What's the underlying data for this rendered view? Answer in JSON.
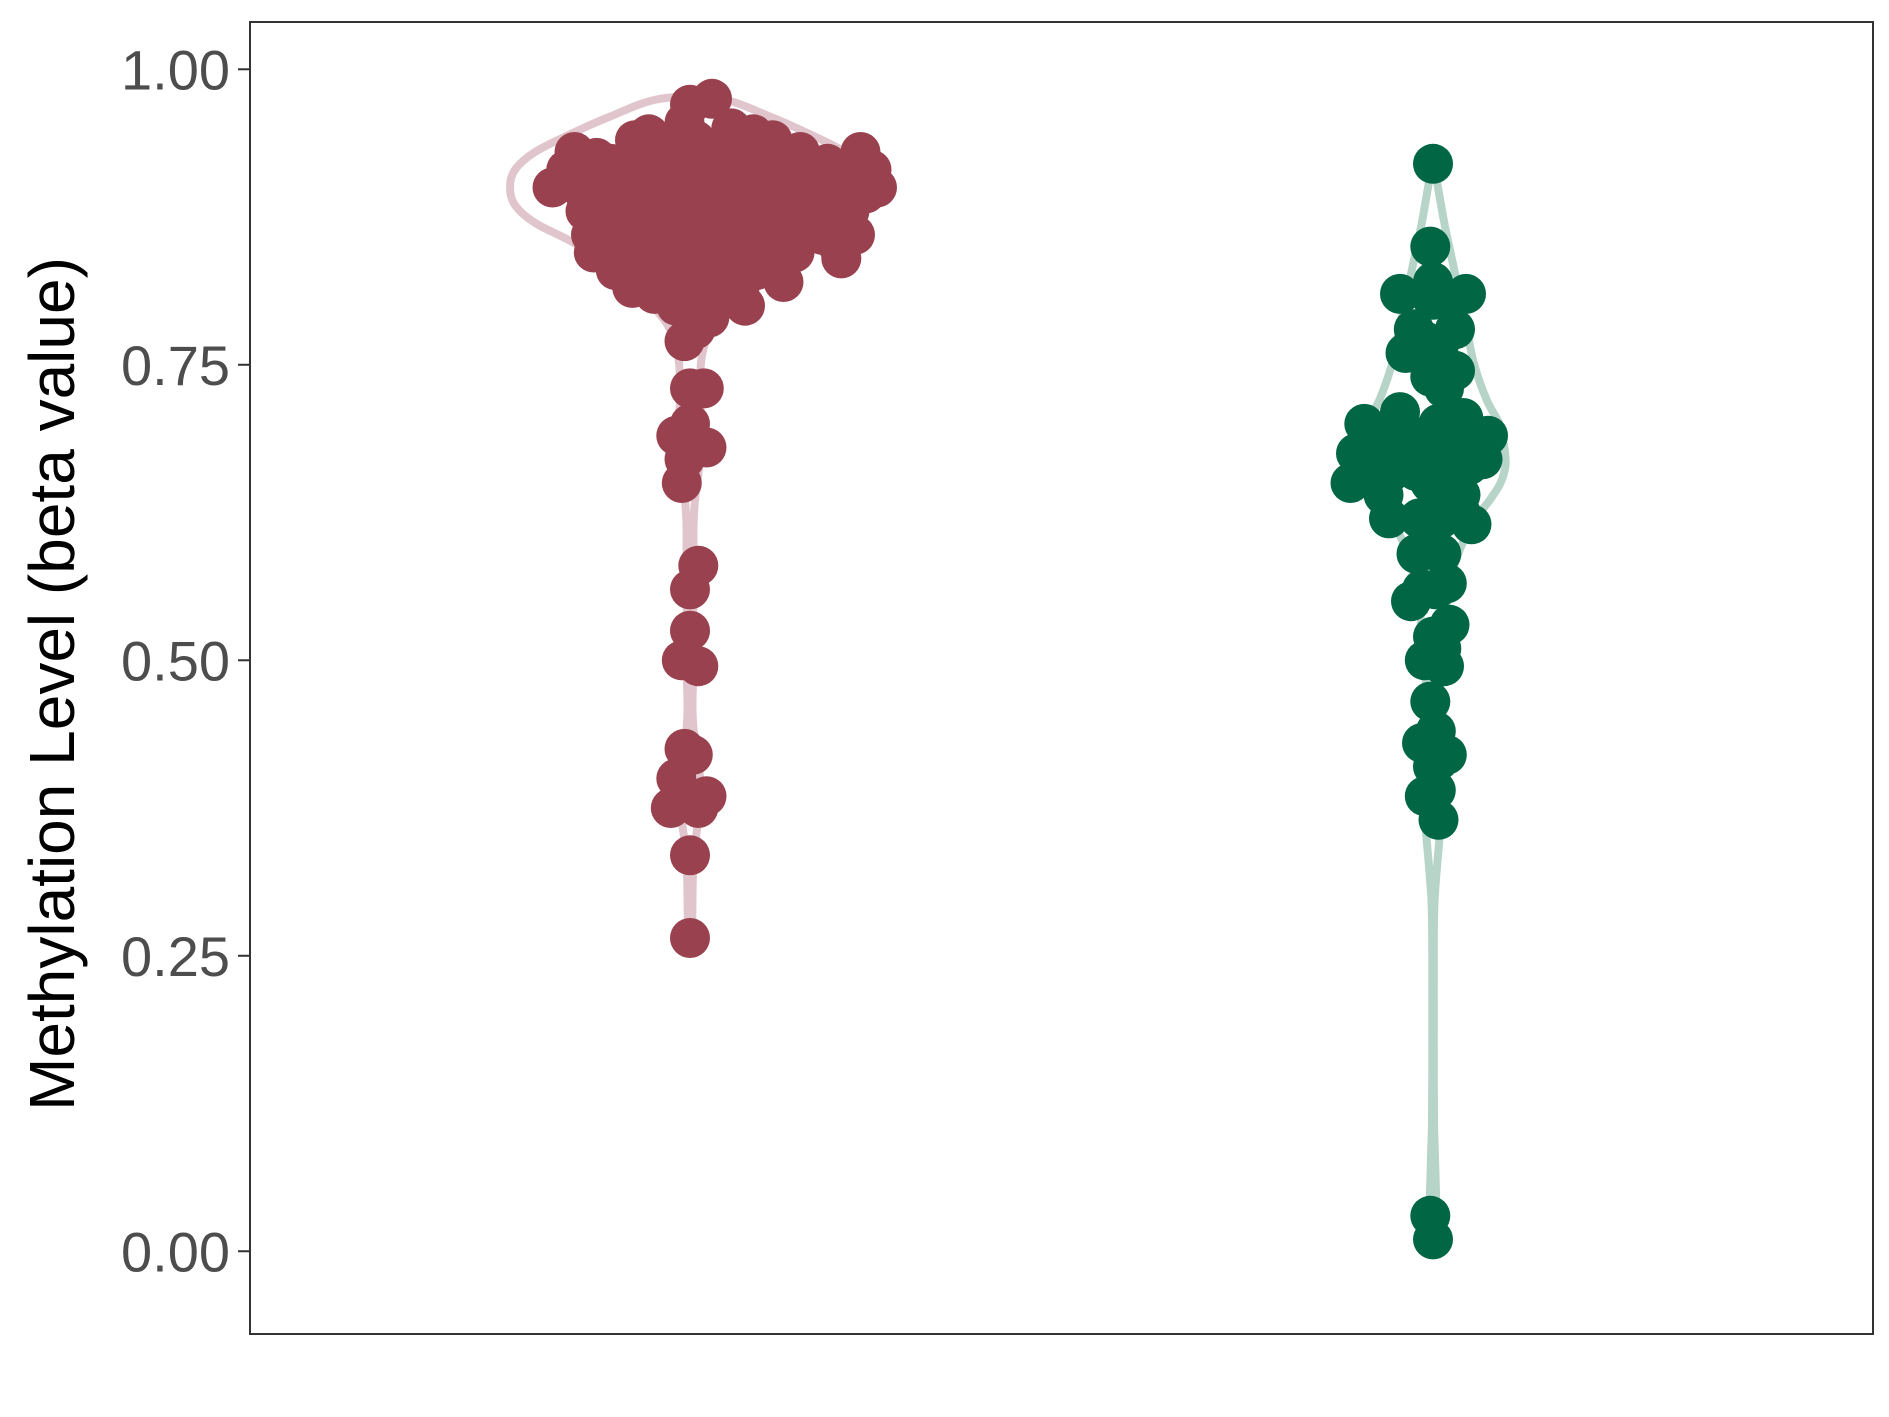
{
  "chart_data": {
    "type": "violin",
    "ylabel": "Methylation Level (beta value)",
    "ylim": [
      -0.07,
      1.04
    ],
    "yticks": [
      {
        "value": 0.0,
        "label": "0.00"
      },
      {
        "value": 0.25,
        "label": "0.25"
      },
      {
        "value": 0.5,
        "label": "0.50"
      },
      {
        "value": 0.75,
        "label": "0.75"
      },
      {
        "value": 1.0,
        "label": "1.00"
      }
    ],
    "grid": false,
    "series": [
      {
        "color": "#99414f",
        "violin_color": "#e0c6cc",
        "points": [
          [
            -0.5,
            0.9
          ],
          [
            -0.45,
            0.915
          ],
          [
            -0.42,
            0.93
          ],
          [
            -0.4,
            0.9
          ],
          [
            -0.38,
            0.88
          ],
          [
            -0.36,
            0.86
          ],
          [
            -0.34,
            0.925
          ],
          [
            -0.33,
            0.9
          ],
          [
            -0.31,
            0.87
          ],
          [
            -0.3,
            0.845
          ],
          [
            -0.29,
            0.92
          ],
          [
            -0.28,
            0.88
          ],
          [
            -0.26,
            0.905
          ],
          [
            -0.25,
            0.86
          ],
          [
            -0.24,
            0.89
          ],
          [
            -0.22,
            0.85
          ],
          [
            -0.2,
            0.94
          ],
          [
            -0.19,
            0.91
          ],
          [
            -0.18,
            0.87
          ],
          [
            -0.17,
            0.83
          ],
          [
            -0.16,
            0.93
          ],
          [
            -0.15,
            0.89
          ],
          [
            -0.14,
            0.855
          ],
          [
            -0.13,
            0.81
          ],
          [
            -0.12,
            0.935
          ],
          [
            -0.11,
            0.9
          ],
          [
            -0.1,
            0.87
          ],
          [
            -0.09,
            0.84
          ],
          [
            -0.08,
            0.815
          ],
          [
            -0.07,
            0.925
          ],
          [
            -0.06,
            0.89
          ],
          [
            -0.05,
            0.86
          ],
          [
            -0.04,
            0.83
          ],
          [
            -0.03,
            0.8
          ],
          [
            -0.02,
            0.955
          ],
          [
            -0.01,
            0.92
          ],
          [
            0.0,
            0.88
          ],
          [
            0.01,
            0.85
          ],
          [
            0.02,
            0.94
          ],
          [
            0.03,
            0.91
          ],
          [
            0.04,
            0.87
          ],
          [
            0.05,
            0.83
          ],
          [
            0.06,
            0.9
          ],
          [
            0.07,
            0.86
          ],
          [
            0.08,
            0.82
          ],
          [
            0.09,
            0.92
          ],
          [
            0.1,
            0.89
          ],
          [
            0.11,
            0.85
          ],
          [
            0.12,
            0.815
          ],
          [
            0.13,
            0.935
          ],
          [
            0.14,
            0.9
          ],
          [
            0.15,
            0.87
          ],
          [
            0.16,
            0.835
          ],
          [
            0.17,
            0.91
          ],
          [
            0.18,
            0.88
          ],
          [
            0.19,
            0.845
          ],
          [
            0.2,
            0.8
          ],
          [
            0.21,
            0.93
          ],
          [
            0.22,
            0.895
          ],
          [
            0.23,
            0.86
          ],
          [
            0.24,
            0.83
          ],
          [
            0.25,
            0.92
          ],
          [
            0.26,
            0.885
          ],
          [
            0.27,
            0.85
          ],
          [
            0.28,
            0.905
          ],
          [
            0.29,
            0.87
          ],
          [
            0.3,
            0.84
          ],
          [
            0.31,
            0.92
          ],
          [
            0.32,
            0.89
          ],
          [
            0.33,
            0.86
          ],
          [
            0.34,
            0.82
          ],
          [
            0.36,
            0.91
          ],
          [
            0.37,
            0.875
          ],
          [
            0.38,
            0.845
          ],
          [
            0.4,
            0.93
          ],
          [
            0.41,
            0.895
          ],
          [
            0.42,
            0.86
          ],
          [
            0.44,
            0.9
          ],
          [
            0.46,
            0.88
          ],
          [
            0.48,
            0.86
          ],
          [
            0.5,
            0.92
          ],
          [
            0.52,
            0.89
          ],
          [
            0.54,
            0.85
          ],
          [
            0.56,
            0.91
          ],
          [
            0.58,
            0.88
          ],
          [
            0.6,
            0.86
          ],
          [
            0.62,
            0.93
          ],
          [
            0.64,
            0.895
          ],
          [
            0.66,
            0.915
          ],
          [
            0.68,
            0.9
          ],
          [
            -0.35,
            0.845
          ],
          [
            -0.27,
            0.83
          ],
          [
            -0.21,
            0.815
          ],
          [
            -0.05,
            0.8
          ],
          [
            0.02,
            0.81
          ],
          [
            0.07,
            0.79
          ],
          [
            0.12,
            0.805
          ],
          [
            0.18,
            0.81
          ],
          [
            0.35,
            0.85
          ],
          [
            0.55,
            0.84
          ],
          [
            0.0,
            0.97
          ],
          [
            0.08,
            0.975
          ],
          [
            0.15,
            0.95
          ],
          [
            0.23,
            0.945
          ],
          [
            0.3,
            0.94
          ],
          [
            -0.15,
            0.945
          ],
          [
            -0.32,
            0.915
          ],
          [
            0.45,
            0.915
          ],
          [
            0.58,
            0.905
          ],
          [
            0.1,
            0.86
          ],
          [
            -0.02,
            0.77
          ],
          [
            0.02,
            0.78
          ],
          [
            0.0,
            0.73
          ],
          [
            0.05,
            0.73
          ],
          [
            -0.05,
            0.69
          ],
          [
            0.0,
            0.7
          ],
          [
            -0.02,
            0.67
          ],
          [
            0.06,
            0.68
          ],
          [
            -0.03,
            0.65
          ],
          [
            0.03,
            0.58
          ],
          [
            0.0,
            0.56
          ],
          [
            0.0,
            0.525
          ],
          [
            -0.03,
            0.5
          ],
          [
            0.03,
            0.495
          ],
          [
            -0.02,
            0.425
          ],
          [
            0.01,
            0.42
          ],
          [
            -0.05,
            0.4
          ],
          [
            -0.07,
            0.375
          ],
          [
            -0.02,
            0.38
          ],
          [
            0.03,
            0.375
          ],
          [
            0.06,
            0.385
          ],
          [
            0.01,
            0.38
          ],
          [
            0.0,
            0.335
          ],
          [
            0.0,
            0.265
          ]
        ],
        "violin": [
          [
            0.975,
            0.12
          ],
          [
            0.96,
            0.32
          ],
          [
            0.945,
            0.48
          ],
          [
            0.93,
            0.62
          ],
          [
            0.915,
            0.7
          ],
          [
            0.9,
            0.72
          ],
          [
            0.885,
            0.7
          ],
          [
            0.87,
            0.62
          ],
          [
            0.855,
            0.48
          ],
          [
            0.84,
            0.36
          ],
          [
            0.825,
            0.28
          ],
          [
            0.81,
            0.2
          ],
          [
            0.795,
            0.13
          ],
          [
            0.78,
            0.08
          ],
          [
            0.76,
            0.05
          ],
          [
            0.74,
            0.04
          ],
          [
            0.72,
            0.04
          ],
          [
            0.7,
            0.045
          ],
          [
            0.68,
            0.045
          ],
          [
            0.66,
            0.035
          ],
          [
            0.64,
            0.022
          ],
          [
            0.62,
            0.015
          ],
          [
            0.6,
            0.014
          ],
          [
            0.58,
            0.014
          ],
          [
            0.56,
            0.014
          ],
          [
            0.54,
            0.013
          ],
          [
            0.52,
            0.013
          ],
          [
            0.5,
            0.014
          ],
          [
            0.48,
            0.012
          ],
          [
            0.46,
            0.01
          ],
          [
            0.44,
            0.015
          ],
          [
            0.42,
            0.03
          ],
          [
            0.4,
            0.04
          ],
          [
            0.38,
            0.04
          ],
          [
            0.36,
            0.03
          ],
          [
            0.34,
            0.018
          ],
          [
            0.32,
            0.012
          ],
          [
            0.3,
            0.01
          ],
          [
            0.28,
            0.009
          ],
          [
            0.262,
            0.008
          ]
        ]
      },
      {
        "color": "#006643",
        "violin_color": "#b7d4c9",
        "points": [
          [
            -0.3,
            0.65
          ],
          [
            -0.28,
            0.675
          ],
          [
            -0.25,
            0.7
          ],
          [
            -0.24,
            0.66
          ],
          [
            -0.2,
            0.69
          ],
          [
            -0.18,
            0.64
          ],
          [
            -0.16,
            0.62
          ],
          [
            -0.15,
            0.66
          ],
          [
            -0.12,
            0.81
          ],
          [
            -0.12,
            0.71
          ],
          [
            -0.1,
            0.76
          ],
          [
            -0.09,
            0.69
          ],
          [
            -0.11,
            0.68
          ],
          [
            -0.08,
            0.55
          ],
          [
            -0.07,
            0.78
          ],
          [
            -0.06,
            0.66
          ],
          [
            -0.05,
            0.62
          ],
          [
            -0.06,
            0.59
          ],
          [
            -0.04,
            0.56
          ],
          [
            -0.03,
            0.77
          ],
          [
            -0.03,
            0.5
          ],
          [
            -0.02,
            0.69
          ],
          [
            -0.02,
            0.6
          ],
          [
            -0.01,
            0.85
          ],
          [
            -0.01,
            0.74
          ],
          [
            -0.01,
            0.65
          ],
          [
            0.0,
            0.82
          ],
          [
            0.0,
            0.805
          ],
          [
            0.0,
            0.52
          ],
          [
            -0.01,
            0.465
          ],
          [
            0.01,
            0.65
          ],
          [
            0.01,
            0.56
          ],
          [
            0.01,
            0.44
          ],
          [
            0.02,
            0.7
          ],
          [
            0.02,
            0.765
          ],
          [
            0.03,
            0.51
          ],
          [
            0.03,
            0.62
          ],
          [
            0.03,
            0.59
          ],
          [
            0.04,
            0.68
          ],
          [
            0.04,
            0.73
          ],
          [
            0.04,
            0.495
          ],
          [
            0.05,
            0.805
          ],
          [
            0.05,
            0.565
          ],
          [
            0.06,
            0.53
          ],
          [
            0.07,
            0.665
          ],
          [
            0.08,
            0.78
          ],
          [
            0.08,
            0.745
          ],
          [
            0.09,
            0.69
          ],
          [
            0.1,
            0.64
          ],
          [
            0.1,
            0.625
          ],
          [
            0.11,
            0.705
          ],
          [
            0.12,
            0.81
          ],
          [
            0.13,
            0.665
          ],
          [
            0.14,
            0.615
          ],
          [
            0.16,
            0.685
          ],
          [
            0.18,
            0.67
          ],
          [
            0.2,
            0.69
          ],
          [
            0.02,
            0.415
          ],
          [
            0.05,
            0.42
          ],
          [
            -0.04,
            0.43
          ],
          [
            0.0,
            0.41
          ],
          [
            -0.03,
            0.385
          ],
          [
            0.01,
            0.39
          ],
          [
            0.02,
            0.365
          ],
          [
            0.0,
            0.92
          ],
          [
            -0.01,
            0.03
          ],
          [
            0.0,
            0.01
          ]
        ],
        "violin": [
          [
            0.92,
            0.005
          ],
          [
            0.9,
            0.02
          ],
          [
            0.87,
            0.045
          ],
          [
            0.84,
            0.075
          ],
          [
            0.81,
            0.105
          ],
          [
            0.78,
            0.135
          ],
          [
            0.75,
            0.165
          ],
          [
            0.72,
            0.215
          ],
          [
            0.7,
            0.265
          ],
          [
            0.68,
            0.285
          ],
          [
            0.665,
            0.29
          ],
          [
            0.65,
            0.27
          ],
          [
            0.635,
            0.225
          ],
          [
            0.62,
            0.17
          ],
          [
            0.6,
            0.12
          ],
          [
            0.58,
            0.085
          ],
          [
            0.56,
            0.065
          ],
          [
            0.54,
            0.052
          ],
          [
            0.52,
            0.042
          ],
          [
            0.5,
            0.034
          ],
          [
            0.48,
            0.028
          ],
          [
            0.46,
            0.025
          ],
          [
            0.44,
            0.025
          ],
          [
            0.42,
            0.028
          ],
          [
            0.4,
            0.032
          ],
          [
            0.38,
            0.034
          ],
          [
            0.36,
            0.03
          ],
          [
            0.34,
            0.022
          ],
          [
            0.32,
            0.014
          ],
          [
            0.3,
            0.007
          ],
          [
            0.28,
            0.004
          ],
          [
            0.25,
            0.003
          ],
          [
            0.2,
            0.003
          ],
          [
            0.15,
            0.003
          ],
          [
            0.11,
            0.004
          ],
          [
            0.08,
            0.008
          ],
          [
            0.05,
            0.012
          ],
          [
            0.03,
            0.012
          ],
          [
            0.015,
            0.008
          ],
          [
            0.005,
            0.005
          ]
        ]
      }
    ]
  }
}
